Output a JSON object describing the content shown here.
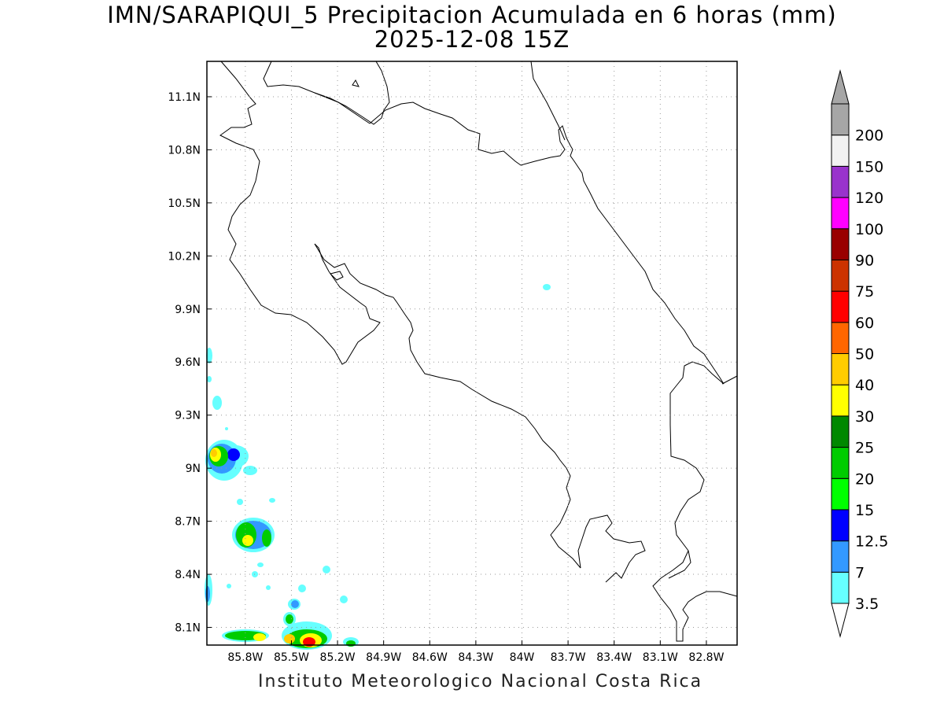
{
  "map": {
    "title_line1": "IMN/SARAPIQUI_5 Precipitacion Acumulada en 6 horas (mm)",
    "title_line2": "2025-12-08 15Z",
    "footer": "Instituto Meteorologico Nacional Costa Rica",
    "lon_range": [
      -86.05,
      -82.6
    ],
    "lat_range": [
      8.0,
      11.3
    ],
    "lon_ticks": [
      "85.8W",
      "85.5W",
      "85.2W",
      "84.9W",
      "84.6W",
      "84.3W",
      "84W",
      "83.7W",
      "83.4W",
      "83.1W",
      "82.8W"
    ],
    "lat_ticks": [
      "8.1N",
      "8.4N",
      "8.7N",
      "9N",
      "9.3N",
      "9.6N",
      "9.9N",
      "10.2N",
      "10.5N",
      "10.8N",
      "11.1N"
    ],
    "grid": "dotted",
    "colorbar": {
      "placement": "right",
      "levels": [
        "3.5",
        "7",
        "12.5",
        "15",
        "20",
        "25",
        "30",
        "40",
        "50",
        "60",
        "75",
        "90",
        "100",
        "120",
        "150",
        "200"
      ],
      "colors": [
        "#66ffff",
        "#3399ff",
        "#0000ff",
        "#00ff00",
        "#00cc00",
        "#008800",
        "#ffff00",
        "#ffcc00",
        "#ff6600",
        "#ff0000",
        "#cc3300",
        "#990000",
        "#ff00ff",
        "#9933cc",
        "#f2f2f2",
        "#a6a6a6"
      ],
      "under_color": "#ffffff",
      "over_color": "#a6a6a6"
    }
  }
}
